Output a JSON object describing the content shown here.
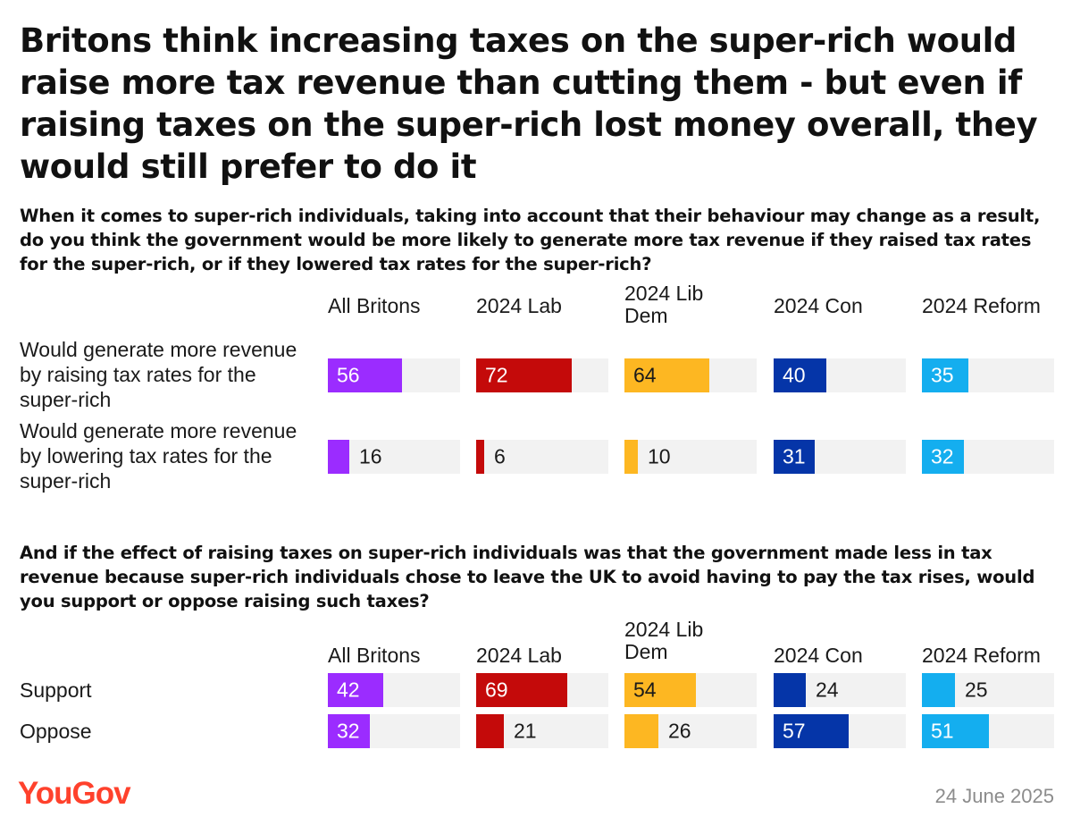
{
  "title": "Britons think increasing taxes on the super-rich would raise more tax revenue than cutting them - but even if raising taxes on the super-rich lost money overall, they would still prefer to do it",
  "footer": {
    "brand": "YouGov",
    "date": "24 June 2025"
  },
  "colors": {
    "All Britons": "#9b2cff",
    "2024 Lab": "#c40a0a",
    "2024 Lib Dem": "#fdb722",
    "2024 Con": "#0535a8",
    "2024 Reform": "#14aeef",
    "track": "#f2f2f2"
  },
  "chart_data": [
    {
      "type": "bar",
      "title": "When it comes to super-rich individuals, taking into account that their behaviour may change as a result, do you think the government would be more likely to generate more tax revenue if they raised tax rates for the super-rich, or if they lowered tax rates for the super-rich?",
      "groups": [
        "All Britons",
        "2024 Lab",
        "2024 Lib Dem",
        "2024 Con",
        "2024 Reform"
      ],
      "ylim": [
        0,
        100
      ],
      "series": [
        {
          "name": "Would generate more revenue by raising tax rates for the super-rich",
          "values": [
            56,
            72,
            64,
            40,
            35
          ]
        },
        {
          "name": "Would generate more revenue by lowering tax rates for the super-rich",
          "values": [
            16,
            6,
            10,
            31,
            32
          ]
        }
      ]
    },
    {
      "type": "bar",
      "title": "And if the effect of raising taxes on super-rich individuals was that the government made less in tax revenue because super-rich individuals chose to leave the UK to avoid having to pay the tax rises, would you support or oppose raising such taxes?",
      "groups": [
        "All Britons",
        "2024 Lab",
        "2024 Lib Dem",
        "2024 Con",
        "2024 Reform"
      ],
      "ylim": [
        0,
        100
      ],
      "series": [
        {
          "name": "Support",
          "values": [
            42,
            69,
            54,
            24,
            25
          ]
        },
        {
          "name": "Oppose",
          "values": [
            32,
            21,
            26,
            57,
            51
          ]
        }
      ]
    }
  ]
}
